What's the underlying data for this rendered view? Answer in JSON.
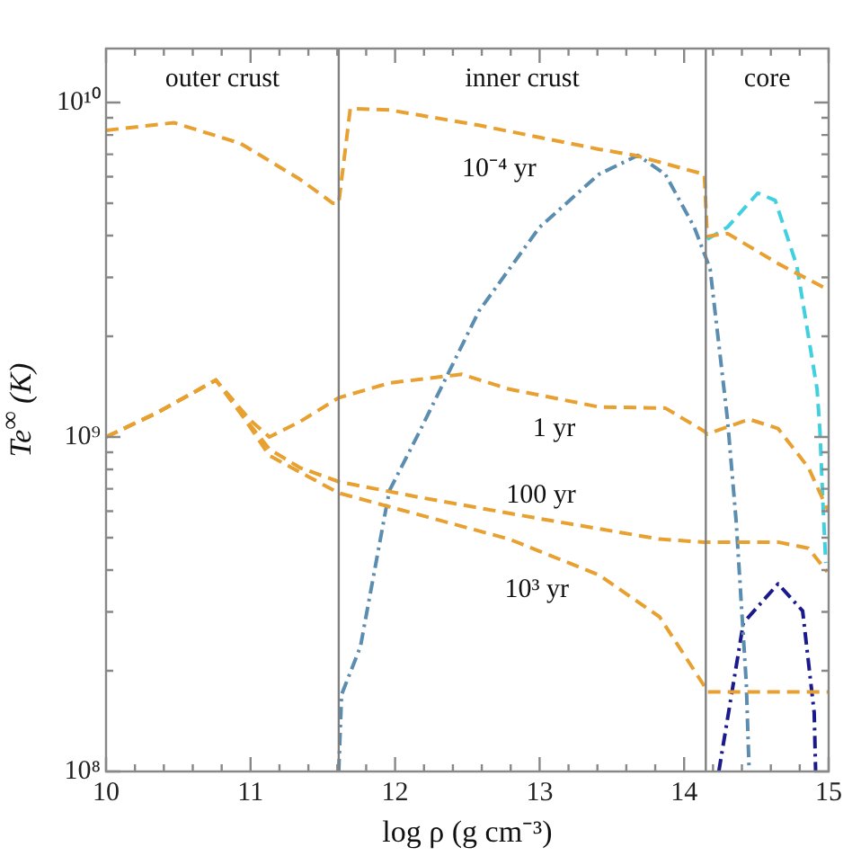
{
  "chart_data": {
    "type": "line",
    "xlabel": "log ρ (g cm⁻³)",
    "ylabel": "Te$^{∞}$ (K)",
    "log": "y",
    "grid": false,
    "legend": false,
    "marker": "none",
    "xlim": [
      10,
      15
    ],
    "ylim": [
      100000000.0,
      14500000000.0
    ],
    "xticks": [
      10,
      {
        "value": 10.2,
        "label": null
      },
      {
        "value": 10.4,
        "label": null
      },
      {
        "value": 10.6,
        "label": null
      },
      {
        "value": 10.8,
        "label": null
      },
      11,
      {
        "value": 11.2,
        "label": null
      },
      {
        "value": 11.4,
        "label": null
      },
      {
        "value": 11.6,
        "label": null
      },
      {
        "value": 11.8,
        "label": null
      },
      12,
      {
        "value": 12.2,
        "label": null
      },
      {
        "value": 12.4,
        "label": null
      },
      {
        "value": 12.6,
        "label": null
      },
      {
        "value": 12.8,
        "label": null
      },
      13,
      {
        "value": 13.2,
        "label": null
      },
      {
        "value": 13.4,
        "label": null
      },
      {
        "value": 13.6,
        "label": null
      },
      {
        "value": 13.8,
        "label": null
      },
      14,
      {
        "value": 14.2,
        "label": null
      },
      {
        "value": 14.4,
        "label": null
      },
      {
        "value": 14.6,
        "label": null
      },
      {
        "value": 14.8,
        "label": null
      },
      15
    ],
    "yticks": [
      {
        "value": 100000000.0,
        "label": "10⁸"
      },
      {
        "value": 200000000.0,
        "label": null
      },
      {
        "value": 300000000.0,
        "label": null
      },
      {
        "value": 400000000.0,
        "label": null
      },
      {
        "value": 500000000.0,
        "label": null
      },
      {
        "value": 600000000.0,
        "label": null
      },
      {
        "value": 700000000.0,
        "label": null
      },
      {
        "value": 800000000.0,
        "label": null
      },
      {
        "value": 900000000.0,
        "label": null
      },
      {
        "value": 1000000000.0,
        "label": "10⁹"
      },
      {
        "value": 2000000000.0,
        "label": null
      },
      {
        "value": 3000000000.0,
        "label": null
      },
      {
        "value": 4000000000.0,
        "label": null
      },
      {
        "value": 5000000000.0,
        "label": null
      },
      {
        "value": 6000000000.0,
        "label": null
      },
      {
        "value": 7000000000.0,
        "label": null
      },
      {
        "value": 8000000000.0,
        "label": null
      },
      {
        "value": 9000000000.0,
        "label": null
      },
      {
        "value": 10000000000.0,
        "label": "10¹⁰"
      }
    ],
    "ref_lines": [
      {
        "axis": "x",
        "value": 11.61,
        "color": "#808080",
        "line_style": "solid"
      },
      {
        "axis": "x",
        "value": 14.15,
        "color": "#808080",
        "line_style": "solid"
      }
    ],
    "annotations": [
      "outer crust",
      "inner crust",
      "core"
    ],
    "series": [
      {
        "name": "10⁻⁴ yr",
        "color": "#e8a030",
        "line_style": "dashed",
        "x": [
          10.0,
          10.47,
          10.93,
          11.34,
          11.57,
          11.61,
          11.69,
          11.96,
          12.58,
          13.41,
          13.66,
          14.14,
          14.16,
          14.3,
          14.65,
          15.0
        ],
        "values": [
          8260000000.0,
          8700000000.0,
          7550000000.0,
          5900000000.0,
          5000000000.0,
          5000000000.0,
          9600000000.0,
          9500000000.0,
          8550000000.0,
          7250000000.0,
          6950000000.0,
          6100000000.0,
          3980000000.0,
          4060000000.0,
          3300000000.0,
          2750000000.0
        ]
      },
      {
        "name": "1 yr",
        "color": "#e8a030",
        "line_style": "dashed",
        "x": [
          10.0,
          10.35,
          10.76,
          11.0,
          11.13,
          11.34,
          11.61,
          11.96,
          12.46,
          12.79,
          13.41,
          13.87,
          14.14,
          14.16,
          14.45,
          14.65,
          14.86,
          15.0
        ],
        "values": [
          1000000000.0,
          1180000000.0,
          1480000000.0,
          1120000000.0,
          1000000000.0,
          1110000000.0,
          1310000000.0,
          1450000000.0,
          1540000000.0,
          1390000000.0,
          1230000000.0,
          1220000000.0,
          1040000000.0,
          1020000000.0,
          1130000000.0,
          1060000000.0,
          810000000.0,
          597000000.0
        ]
      },
      {
        "name": "100 yr",
        "color": "#e8a030",
        "line_style": "dashed",
        "x": [
          10.0,
          10.35,
          10.76,
          10.93,
          11.13,
          11.34,
          11.61,
          12.17,
          13.0,
          13.83,
          14.14,
          14.65,
          14.86,
          14.99
        ],
        "values": [
          1000000000.0,
          1180000000.0,
          1480000000.0,
          1180000000.0,
          920000000.0,
          810000000.0,
          735000000.0,
          660000000.0,
          570000000.0,
          495000000.0,
          485000000.0,
          485000000.0,
          465000000.0,
          395000000.0
        ]
      },
      {
        "name": "10³ yr",
        "color": "#e8a030",
        "line_style": "dashed",
        "x": [
          10.0,
          10.35,
          10.76,
          10.93,
          11.13,
          11.61,
          12.17,
          12.79,
          13.41,
          13.83,
          14.14,
          14.16,
          15.0
        ],
        "values": [
          1000000000.0,
          1180000000.0,
          1480000000.0,
          1180000000.0,
          880000000.0,
          680000000.0,
          585000000.0,
          495000000.0,
          387000000.0,
          290000000.0,
          180000000.0,
          173000000.0,
          173000000.0
        ]
      },
      {
        "color": "#40d0e0",
        "line_style": "dashed",
        "x": [
          14.16,
          14.3,
          14.51,
          14.63,
          14.78,
          14.92,
          14.94,
          14.96,
          14.98
        ],
        "values": [
          3900000000.0,
          4240000000.0,
          5360000000.0,
          5100000000.0,
          3250000000.0,
          1390000000.0,
          1040000000.0,
          640000000.0,
          420000000.0
        ]
      },
      {
        "color": "#5b8db0",
        "line_style": "dotted",
        "x": [
          11.61,
          11.63,
          11.76,
          11.96,
          12.17,
          12.58,
          13.0,
          13.41,
          13.68,
          13.87,
          14.07,
          14.18,
          14.3,
          14.36,
          14.43,
          14.45
        ],
        "values": [
          100000000.0,
          170000000.0,
          236000000.0,
          690000000.0,
          1040000000.0,
          2380000000.0,
          4240000000.0,
          6100000000.0,
          6950000000.0,
          6100000000.0,
          4240000000.0,
          3180000000.0,
          1130000000.0,
          560000000.0,
          184000000.0,
          100000000.0
        ]
      },
      {
        "color": "#1a1a8c",
        "line_style": "dotted",
        "x": [
          14.24,
          14.41,
          14.65,
          14.82,
          14.9,
          14.91
        ],
        "values": [
          100000000.0,
          278000000.0,
          364000000.0,
          302000000.0,
          150000000.0,
          100000000.0
        ]
      }
    ]
  }
}
